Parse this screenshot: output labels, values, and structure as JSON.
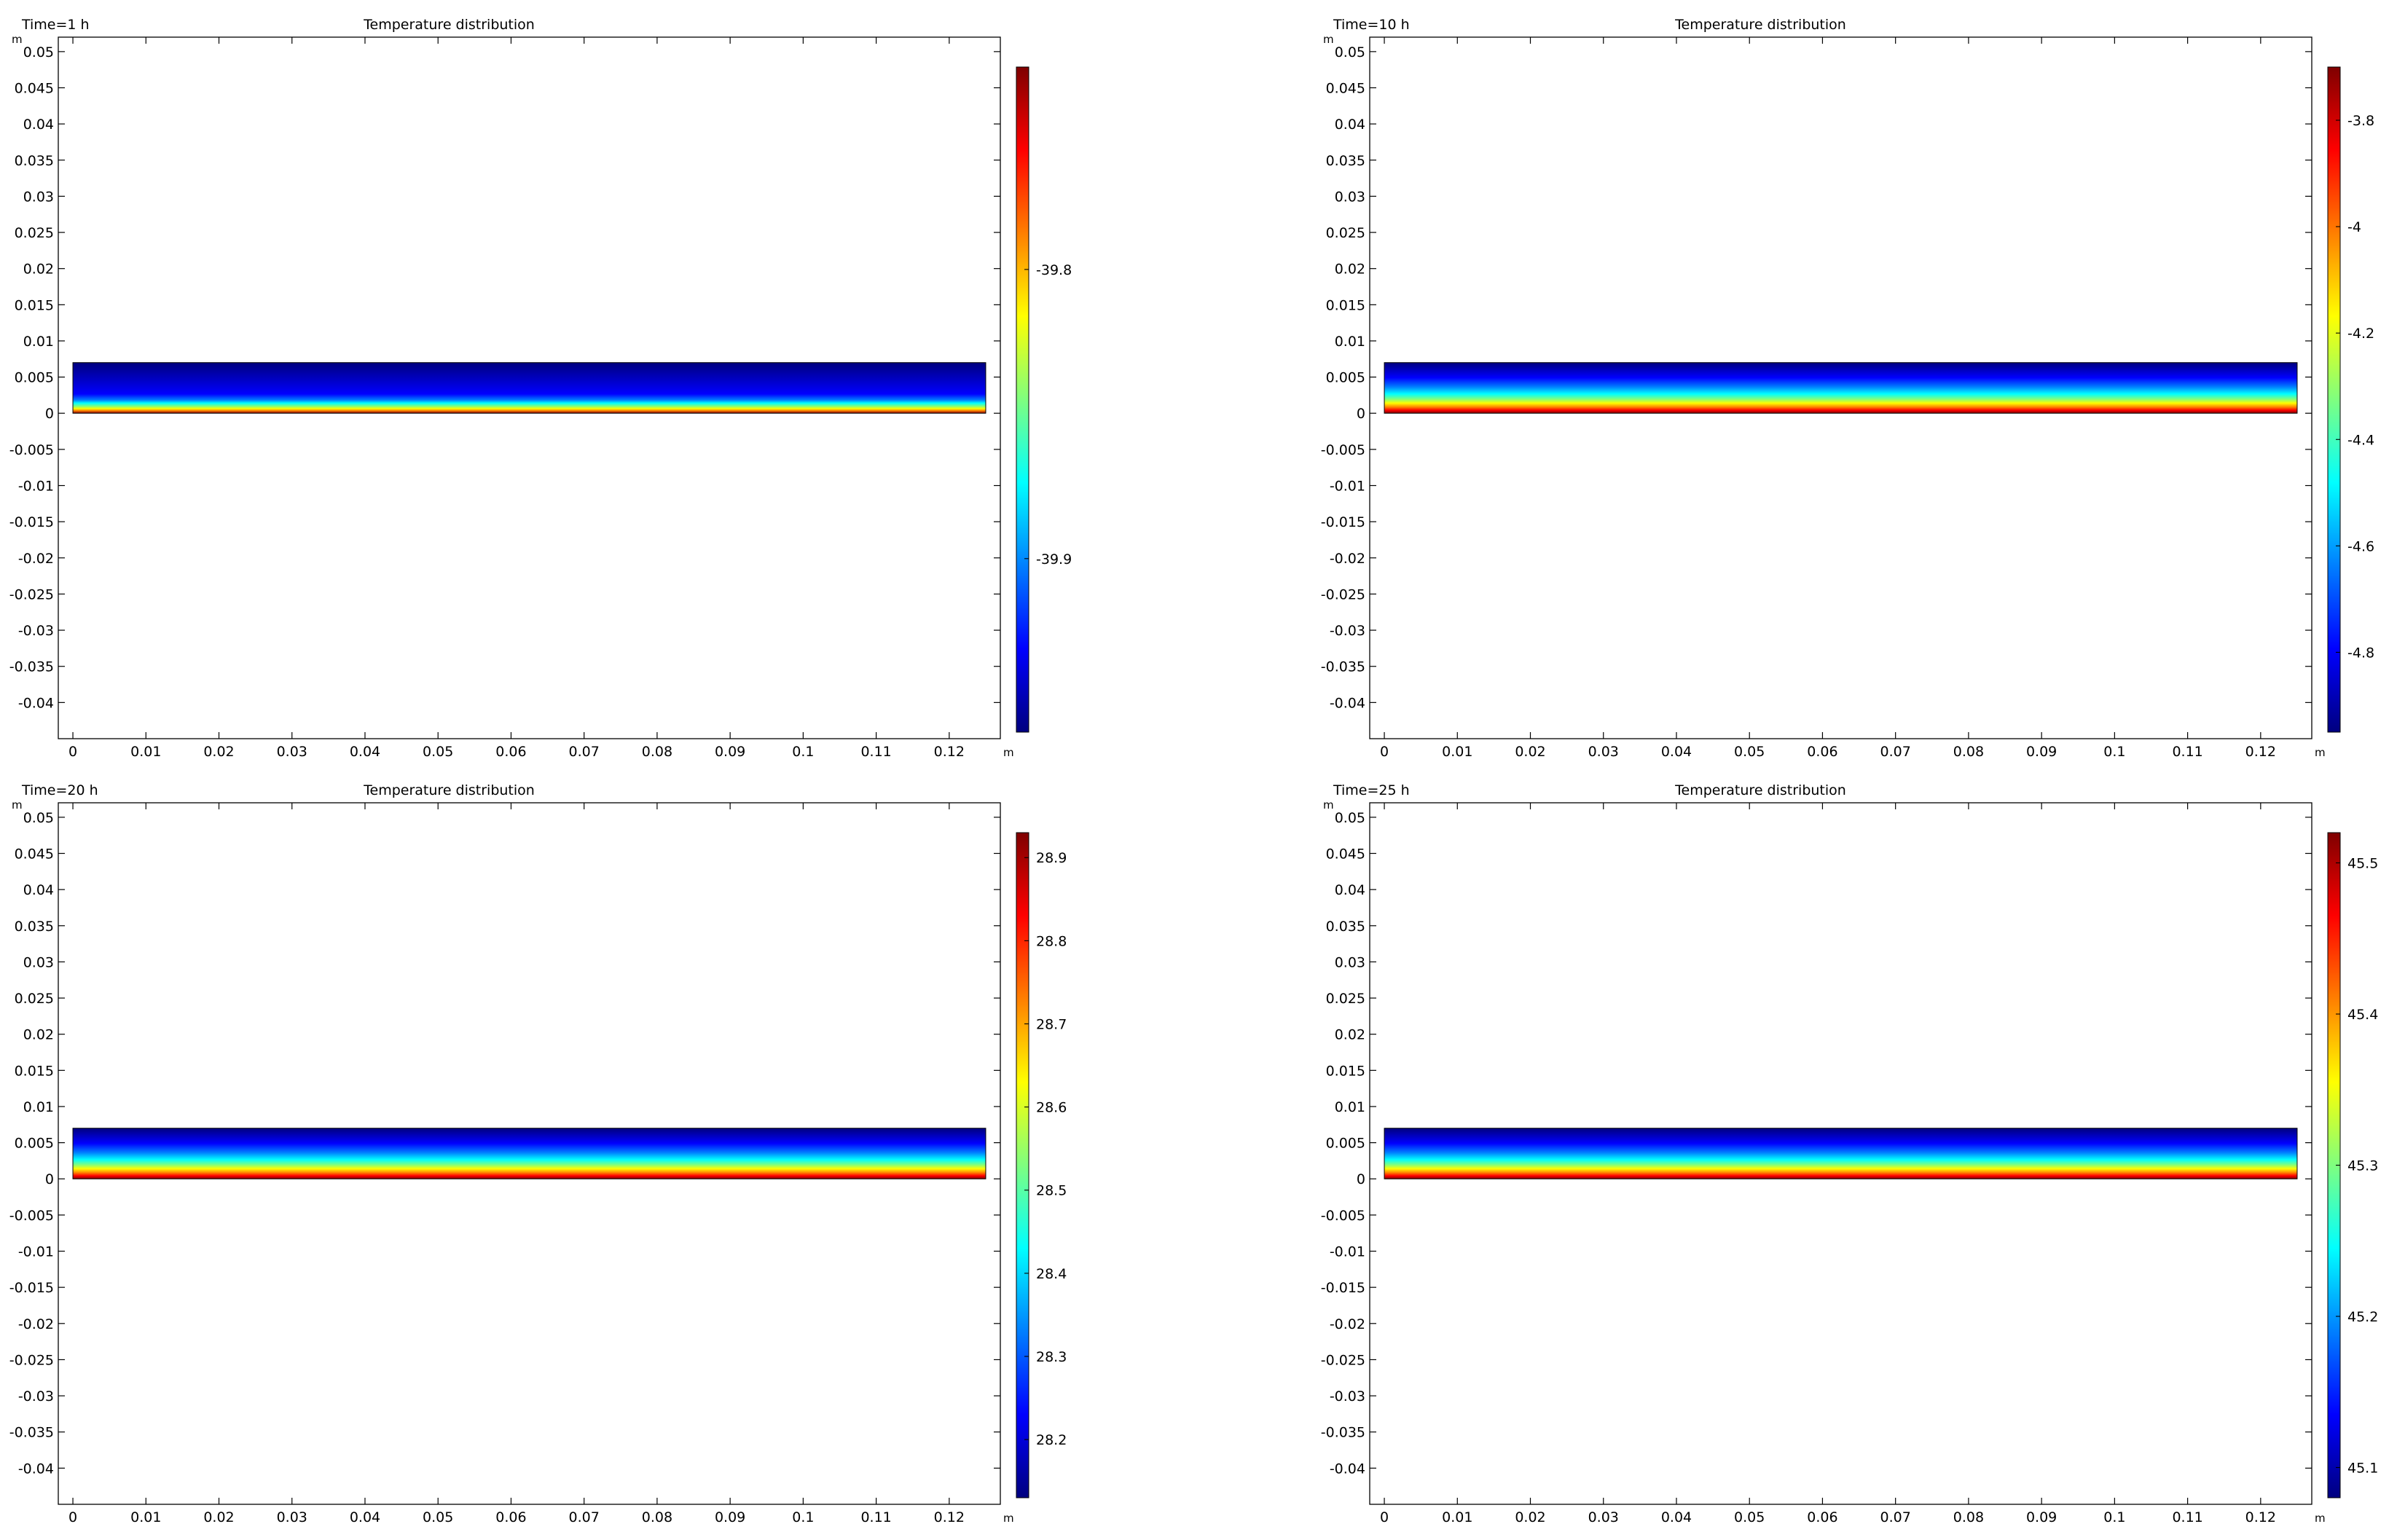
{
  "figure": {
    "panels": [
      {
        "time_label": "Time=1 h",
        "title": "Temperature distribution",
        "y_unit": "m",
        "x_unit": "m",
        "colorbar": {
          "min": -39.96,
          "max": -39.73,
          "ticks": [
            "-39.8",
            "-39.9"
          ],
          "tick_values": [
            -39.8,
            -39.9
          ]
        },
        "field": {
          "layer_top": 0.007,
          "layer_bottom": 0.0,
          "profile": "thin_hot_bottom"
        }
      },
      {
        "time_label": "Time=10 h",
        "title": "Temperature distribution",
        "y_unit": "m",
        "x_unit": "m",
        "colorbar": {
          "min": -4.95,
          "max": -3.7,
          "ticks": [
            "-3.8",
            "-4",
            "-4.2",
            "-4.4",
            "-4.6",
            "-4.8"
          ],
          "tick_values": [
            -3.8,
            -4.0,
            -4.2,
            -4.4,
            -4.6,
            -4.8
          ]
        },
        "field": {
          "layer_top": 0.007,
          "layer_bottom": 0.0,
          "profile": "hot_bottom"
        }
      },
      {
        "time_label": "Time=20 h",
        "title": "Temperature distribution",
        "y_unit": "m",
        "x_unit": "m",
        "colorbar": {
          "min": 28.13,
          "max": 28.93,
          "ticks": [
            "28.9",
            "28.8",
            "28.7",
            "28.6",
            "28.5",
            "28.4",
            "28.3",
            "28.2"
          ],
          "tick_values": [
            28.9,
            28.8,
            28.7,
            28.6,
            28.5,
            28.4,
            28.3,
            28.2
          ]
        },
        "field": {
          "layer_top": 0.007,
          "layer_bottom": 0.0,
          "profile": "hot_bottom"
        }
      },
      {
        "time_label": "Time=25 h",
        "title": "Temperature distribution",
        "y_unit": "m",
        "x_unit": "m",
        "colorbar": {
          "min": 45.08,
          "max": 45.52,
          "ticks": [
            "45.5",
            "45.4",
            "45.3",
            "45.2",
            "45.1"
          ],
          "tick_values": [
            45.5,
            45.4,
            45.3,
            45.2,
            45.1
          ]
        },
        "field": {
          "layer_top": 0.007,
          "layer_bottom": 0.0,
          "profile": "hot_bottom"
        }
      }
    ]
  },
  "chart_data": [
    {
      "type": "heatmap",
      "title": "Temperature distribution",
      "annotation": "Time=1 h",
      "xlim": [
        -0.002,
        0.127
      ],
      "ylim": [
        -0.045,
        0.052
      ],
      "x_ticks": [
        0,
        0.01,
        0.02,
        0.03,
        0.04,
        0.05,
        0.06,
        0.07,
        0.08,
        0.09,
        0.1,
        0.11,
        0.12
      ],
      "y_ticks": [
        0.05,
        0.045,
        0.04,
        0.035,
        0.03,
        0.025,
        0.02,
        0.015,
        0.01,
        0.005,
        0,
        -0.005,
        -0.01,
        -0.015,
        -0.02,
        -0.025,
        -0.03,
        -0.035,
        -0.04
      ],
      "domain": {
        "x": [
          0,
          0.125
        ],
        "y": [
          0,
          0.007
        ]
      },
      "colorbar_range": [
        -39.96,
        -39.73
      ]
    },
    {
      "type": "heatmap",
      "title": "Temperature distribution",
      "annotation": "Time=10 h",
      "xlim": [
        -0.002,
        0.127
      ],
      "ylim": [
        -0.045,
        0.052
      ],
      "x_ticks": [
        0,
        0.01,
        0.02,
        0.03,
        0.04,
        0.05,
        0.06,
        0.07,
        0.08,
        0.09,
        0.1,
        0.11,
        0.12
      ],
      "y_ticks": [
        0.05,
        0.045,
        0.04,
        0.035,
        0.03,
        0.025,
        0.02,
        0.015,
        0.01,
        0.005,
        0,
        -0.005,
        -0.01,
        -0.015,
        -0.02,
        -0.025,
        -0.03,
        -0.035,
        -0.04
      ],
      "domain": {
        "x": [
          0,
          0.125
        ],
        "y": [
          0,
          0.007
        ]
      },
      "colorbar_range": [
        -4.95,
        -3.7
      ]
    },
    {
      "type": "heatmap",
      "title": "Temperature distribution",
      "annotation": "Time=20 h",
      "xlim": [
        -0.002,
        0.127
      ],
      "ylim": [
        -0.045,
        0.052
      ],
      "x_ticks": [
        0,
        0.01,
        0.02,
        0.03,
        0.04,
        0.05,
        0.06,
        0.07,
        0.08,
        0.09,
        0.1,
        0.11,
        0.12
      ],
      "y_ticks": [
        0.05,
        0.045,
        0.04,
        0.035,
        0.03,
        0.025,
        0.02,
        0.015,
        0.01,
        0.005,
        0,
        -0.005,
        -0.01,
        -0.015,
        -0.02,
        -0.025,
        -0.03,
        -0.035,
        -0.04
      ],
      "domain": {
        "x": [
          0,
          0.125
        ],
        "y": [
          0,
          0.007
        ]
      },
      "colorbar_range": [
        28.13,
        28.93
      ]
    },
    {
      "type": "heatmap",
      "title": "Temperature distribution",
      "annotation": "Time=25 h",
      "xlim": [
        -0.002,
        0.127
      ],
      "ylim": [
        -0.045,
        0.052
      ],
      "x_ticks": [
        0,
        0.01,
        0.02,
        0.03,
        0.04,
        0.05,
        0.06,
        0.07,
        0.08,
        0.09,
        0.1,
        0.11,
        0.12
      ],
      "y_ticks": [
        0.05,
        0.045,
        0.04,
        0.035,
        0.03,
        0.025,
        0.02,
        0.015,
        0.01,
        0.005,
        0,
        -0.005,
        -0.01,
        -0.015,
        -0.02,
        -0.025,
        -0.03,
        -0.035,
        -0.04
      ],
      "domain": {
        "x": [
          0,
          0.125
        ],
        "y": [
          0,
          0.007
        ]
      },
      "colorbar_range": [
        45.08,
        45.52
      ]
    }
  ],
  "colormap": [
    "#00007f",
    "#0000ff",
    "#007fff",
    "#00ffff",
    "#7fff7f",
    "#ffff00",
    "#ff7f00",
    "#ff0000",
    "#7f0000"
  ]
}
